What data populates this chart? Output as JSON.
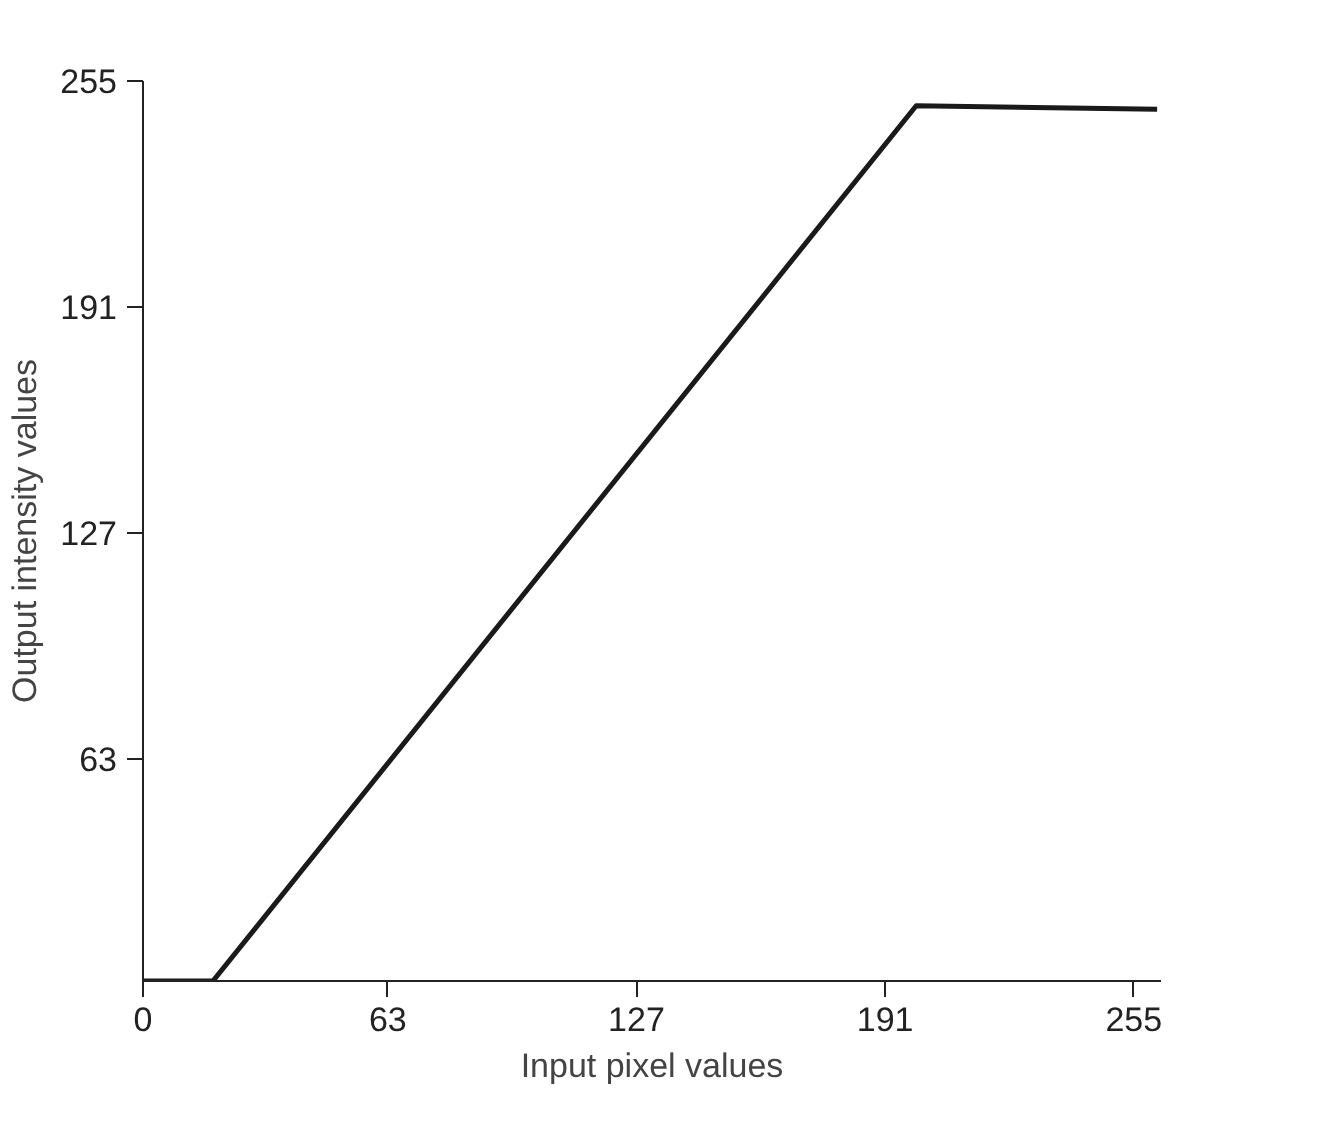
{
  "chart_data": {
    "type": "line",
    "xlabel": "Input pixel values",
    "ylabel": "Output intensity values",
    "x": [
      0,
      18,
      199,
      261
    ],
    "series": [
      {
        "color": "#1a1a1a",
        "values": [
          0,
          0,
          248,
          247
        ]
      }
    ],
    "xlim": [
      0,
      262
    ],
    "ylim": [
      0,
      255
    ],
    "xticks": [
      0,
      63,
      127,
      191,
      255
    ],
    "yticks": [
      63,
      127,
      191,
      255
    ],
    "grid": false,
    "line_style": "solid",
    "marker": "none"
  }
}
